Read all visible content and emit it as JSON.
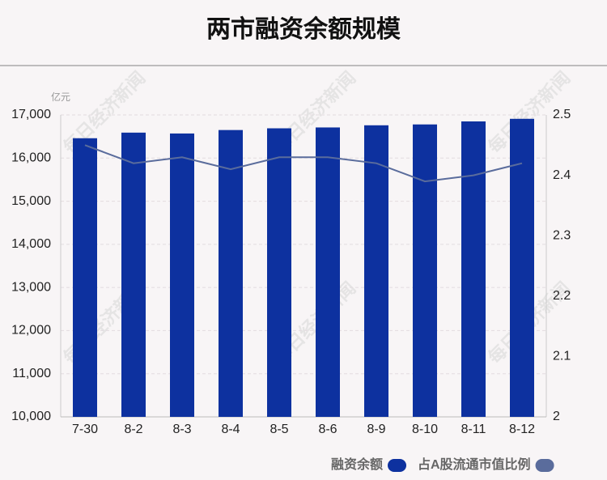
{
  "chart_data": {
    "type": "bar_line",
    "title": "两市融资余额规模",
    "y_unit": "亿元",
    "watermark": "每日经济新闻",
    "categories": [
      "7-30",
      "8-2",
      "8-3",
      "8-4",
      "8-5",
      "8-6",
      "8-9",
      "8-10",
      "8-11",
      "8-12"
    ],
    "series": [
      {
        "name": "融资余额",
        "type": "bar",
        "color": "#0d319f",
        "values": [
          16460,
          16590,
          16570,
          16650,
          16690,
          16710,
          16760,
          16780,
          16850,
          16910
        ]
      },
      {
        "name": "占A股流通市值比例",
        "type": "line",
        "axis": "y2",
        "color": "#5a6c9c",
        "values": [
          2.45,
          2.42,
          2.43,
          2.41,
          2.43,
          2.43,
          2.42,
          2.39,
          2.4,
          2.42
        ]
      }
    ],
    "ylim": [
      10000,
      17000
    ],
    "yticks": [
      {
        "value": 10000,
        "label": "10,000"
      },
      {
        "value": 11000,
        "label": "11,000"
      },
      {
        "value": 12000,
        "label": "12,000"
      },
      {
        "value": 13000,
        "label": "13,000"
      },
      {
        "value": 14000,
        "label": "14,000"
      },
      {
        "value": 15000,
        "label": "15,000"
      },
      {
        "value": 16000,
        "label": "16,000"
      },
      {
        "value": 17000,
        "label": "17,000"
      }
    ],
    "y2lim": [
      2,
      2.5
    ],
    "y2ticks": [
      2,
      2.1,
      2.2,
      2.3,
      2.4,
      2.5
    ],
    "grid": true
  }
}
